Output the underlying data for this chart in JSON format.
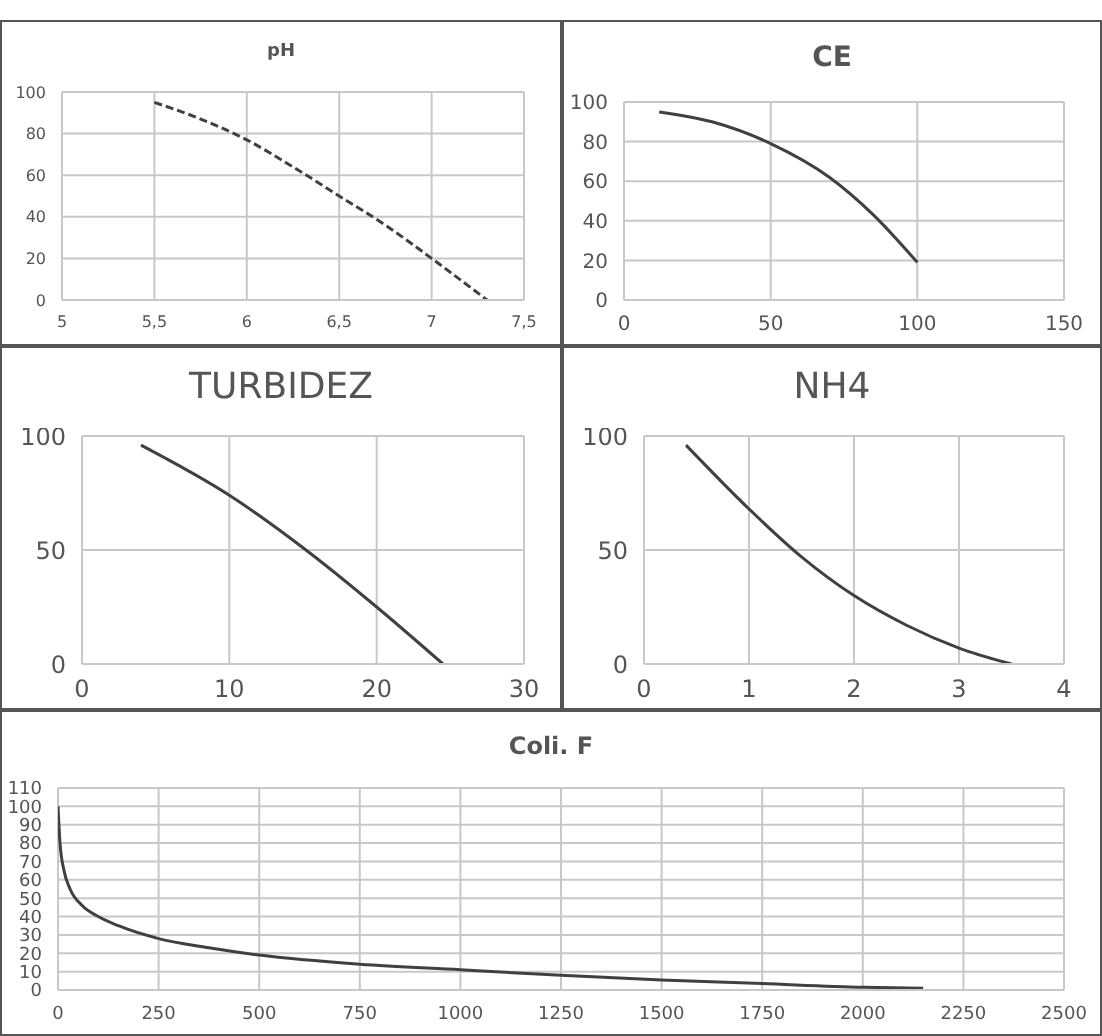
{
  "chart_data": [
    {
      "type": "line",
      "title": "pH",
      "color": "#404040",
      "line_style": "dashed",
      "grid": true,
      "x": [
        5.5,
        5.75,
        6,
        6.25,
        6.5,
        6.75,
        7,
        7.3
      ],
      "values": [
        95,
        87,
        77,
        64,
        50,
        36,
        20,
        0
      ],
      "xlim": [
        5,
        7.5
      ],
      "xticks": [
        5,
        {
          "value": 5.5,
          "label": "5,5"
        },
        6,
        {
          "value": 6.5,
          "label": "6,5"
        },
        7,
        {
          "value": 7.5,
          "label": "7,5"
        }
      ],
      "ylim": [
        0,
        100
      ],
      "yticks": [
        0,
        20,
        40,
        60,
        80,
        100
      ]
    },
    {
      "type": "line",
      "title": "CE",
      "color": "#404040",
      "grid": true,
      "x": [
        12,
        30,
        50,
        70,
        85,
        100
      ],
      "values": [
        95,
        90,
        79,
        62,
        43,
        19
      ],
      "xlim": [
        0,
        150
      ],
      "xticks": [
        0,
        50,
        100,
        150
      ],
      "ylim": [
        0,
        100
      ],
      "yticks": [
        0,
        20,
        40,
        60,
        80,
        100
      ]
    },
    {
      "type": "line",
      "title": "TURBIDEZ",
      "color": "#404040",
      "grid": true,
      "x": [
        4,
        10,
        15,
        20,
        24.5
      ],
      "values": [
        96,
        74,
        51,
        25,
        0
      ],
      "xlim": [
        0,
        30
      ],
      "xticks": [
        0,
        10,
        20,
        30
      ],
      "ylim": [
        0,
        100
      ],
      "yticks": [
        0,
        50,
        100
      ]
    },
    {
      "type": "line",
      "title": "NH4",
      "color": "#404040",
      "grid": true,
      "x": [
        0.4,
        1,
        1.5,
        2,
        2.5,
        3,
        3.5
      ],
      "values": [
        96,
        68,
        47,
        30,
        17,
        7,
        0
      ],
      "xlim": [
        0,
        4
      ],
      "xticks": [
        0,
        1,
        2,
        3,
        4
      ],
      "ylim": [
        0,
        100
      ],
      "yticks": [
        0,
        50,
        100
      ]
    },
    {
      "type": "line",
      "title": "Coli. F",
      "color": "#404040",
      "grid": true,
      "x": [
        0,
        5,
        15,
        30,
        60,
        100,
        150,
        250,
        375,
        500,
        750,
        1000,
        1250,
        1500,
        1750,
        2000,
        2150
      ],
      "values": [
        100,
        80,
        65,
        55,
        46,
        40,
        35,
        28,
        23,
        19,
        14,
        11,
        8,
        5.5,
        3.5,
        1.5,
        1
      ],
      "xlim": [
        0,
        2500
      ],
      "xticks": [
        0,
        250,
        500,
        750,
        1000,
        1250,
        1500,
        1750,
        2000,
        2250,
        2500
      ],
      "ylim": [
        0,
        110
      ],
      "yticks": [
        0,
        10,
        20,
        30,
        40,
        50,
        60,
        70,
        80,
        90,
        100,
        110
      ]
    }
  ]
}
